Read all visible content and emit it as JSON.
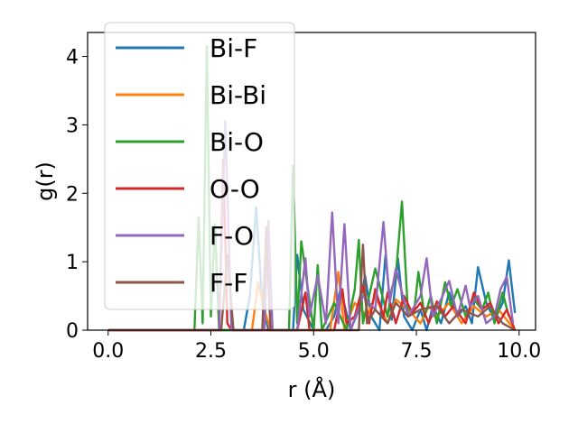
{
  "chart_data": {
    "type": "line",
    "title": "",
    "xlabel": "r (Å)",
    "ylabel": "g(r)",
    "xlim": [
      -0.5,
      10.4
    ],
    "ylim": [
      0,
      4.35
    ],
    "xticks": [
      "0.0",
      "2.5",
      "5.0",
      "7.5",
      "10.0"
    ],
    "yticks": [
      "0",
      "1",
      "2",
      "3",
      "4"
    ],
    "grid": false,
    "legend_position": "top-left",
    "series": [
      {
        "name": "Bi-F",
        "color": "#1f77b4",
        "x": [
          0,
          3.3,
          3.45,
          3.6,
          3.75,
          3.9,
          4.1,
          4.5,
          4.6,
          4.75,
          5.0,
          5.3,
          5.5,
          5.65,
          5.8,
          5.9,
          6.1,
          6.25,
          6.4,
          6.6,
          6.75,
          6.9,
          7.05,
          7.2,
          7.4,
          7.6,
          7.75,
          7.9,
          8.1,
          8.3,
          8.5,
          8.7,
          8.85,
          9.0,
          9.2,
          9.4,
          9.6,
          9.75,
          9.9
        ],
        "y": [
          0,
          0,
          0.5,
          1.8,
          0.4,
          0,
          0,
          0,
          1.1,
          0.3,
          0,
          0,
          0.2,
          0.6,
          0.25,
          0,
          0.3,
          0.8,
          0.2,
          0,
          1.1,
          0.15,
          1.05,
          0.2,
          0,
          0.3,
          0,
          0.35,
          0.1,
          0.55,
          0.2,
          0.35,
          0.1,
          0.92,
          0.4,
          0.15,
          0.4,
          1.02,
          0.25
        ]
      },
      {
        "name": "Bi-Bi",
        "color": "#ff7f0e",
        "x": [
          0,
          3.5,
          3.65,
          3.8,
          3.95,
          5.4,
          5.6,
          5.75,
          6.0,
          6.3,
          6.5,
          6.8,
          7.0,
          7.3,
          7.6,
          7.8,
          8.0,
          8.3,
          8.6,
          8.9,
          9.2,
          9.5,
          9.9
        ],
        "y": [
          0,
          0,
          0.7,
          0.3,
          0,
          0,
          0.85,
          0,
          0.4,
          0.2,
          0.5,
          0.1,
          0.45,
          0.3,
          0.1,
          0.35,
          0.2,
          0.4,
          0.1,
          0.35,
          0.2,
          0.3,
          0
        ]
      },
      {
        "name": "Bi-O",
        "color": "#2ca02c",
        "x": [
          0,
          2.1,
          2.2,
          2.3,
          2.4,
          2.5,
          2.6,
          2.7,
          4.0,
          4.4,
          4.5,
          4.6,
          4.7,
          5.0,
          5.1,
          5.2,
          5.5,
          5.8,
          6.0,
          6.1,
          6.2,
          6.5,
          6.8,
          6.9,
          7.0,
          7.15,
          7.3,
          7.45,
          7.55,
          7.7,
          7.85,
          8.0,
          8.2,
          8.35,
          8.5,
          8.7,
          8.9,
          9.1,
          9.25,
          9.4,
          9.6,
          9.75
        ],
        "y": [
          0,
          0,
          1.65,
          0.1,
          4.15,
          0.2,
          1.55,
          0,
          0,
          0,
          2.4,
          0.1,
          1.3,
          0,
          0.95,
          0,
          0.4,
          0,
          0.6,
          1.32,
          0.1,
          0.9,
          0.2,
          0.6,
          0.8,
          1.88,
          0.2,
          0.3,
          0.85,
          0.2,
          0.5,
          0.1,
          0.7,
          0.35,
          0.6,
          0.2,
          0.45,
          0.3,
          0.55,
          0.1,
          0.55,
          0.2
        ]
      },
      {
        "name": "O-O",
        "color": "#d62728",
        "x": [
          0,
          2.7,
          2.8,
          2.9,
          3.0,
          4.6,
          4.8,
          4.9,
          5.0,
          5.5,
          5.7,
          5.8,
          6.0,
          6.2,
          6.35,
          6.5,
          6.7,
          6.8,
          7.0,
          7.2,
          7.4,
          7.6,
          7.8,
          8.0,
          8.2,
          8.4,
          8.7,
          8.9,
          9.1,
          9.3,
          9.5,
          9.7,
          9.9
        ],
        "y": [
          0,
          0,
          2.5,
          0.1,
          0,
          0,
          0.55,
          0,
          0,
          0,
          0.6,
          0.1,
          0.2,
          0.65,
          0.1,
          0.6,
          0.2,
          0.55,
          0.1,
          0.5,
          0.25,
          0.4,
          0.1,
          0.42,
          0.2,
          0.35,
          0.1,
          0.55,
          0.3,
          0.4,
          0.1,
          0.3,
          0
        ]
      },
      {
        "name": "F-O",
        "color": "#9467bd",
        "x": [
          0,
          2.7,
          2.85,
          3.0,
          3.8,
          3.9,
          4.0,
          4.6,
          4.8,
          4.9,
          5.1,
          5.3,
          5.45,
          5.6,
          5.75,
          5.9,
          6.2,
          6.5,
          6.7,
          6.85,
          7.0,
          7.3,
          7.6,
          7.75,
          7.9,
          8.1,
          8.3,
          8.5,
          8.7,
          8.8,
          9.0,
          9.2,
          9.4,
          9.55,
          9.7,
          9.85
        ],
        "y": [
          0,
          0,
          3.05,
          0,
          0,
          1.6,
          0,
          0,
          1.05,
          0.2,
          0.8,
          0.1,
          1.72,
          0.1,
          1.55,
          0,
          0.5,
          0.3,
          1.58,
          0.4,
          0.9,
          0.2,
          0.5,
          1.05,
          0.2,
          0.45,
          0.72,
          0.2,
          0.65,
          0.35,
          0.5,
          0.1,
          0.2,
          0.6,
          0.78,
          0.1
        ]
      },
      {
        "name": "F-F",
        "color": "#8c564b",
        "x": [
          0,
          2.75,
          2.9,
          3.05,
          3.75,
          3.85,
          3.95,
          6.1,
          6.2,
          6.3,
          6.5,
          6.8,
          7.0,
          7.3,
          7.6,
          8.0,
          8.3,
          8.6,
          9.0,
          9.3,
          9.6,
          9.9
        ],
        "y": [
          0,
          0,
          1.1,
          0,
          0,
          1.5,
          0,
          0,
          1.25,
          0.1,
          0.3,
          0.1,
          0.4,
          0.2,
          0.3,
          0.35,
          0.1,
          0.3,
          0.2,
          0.35,
          0.1,
          0
        ]
      }
    ]
  }
}
